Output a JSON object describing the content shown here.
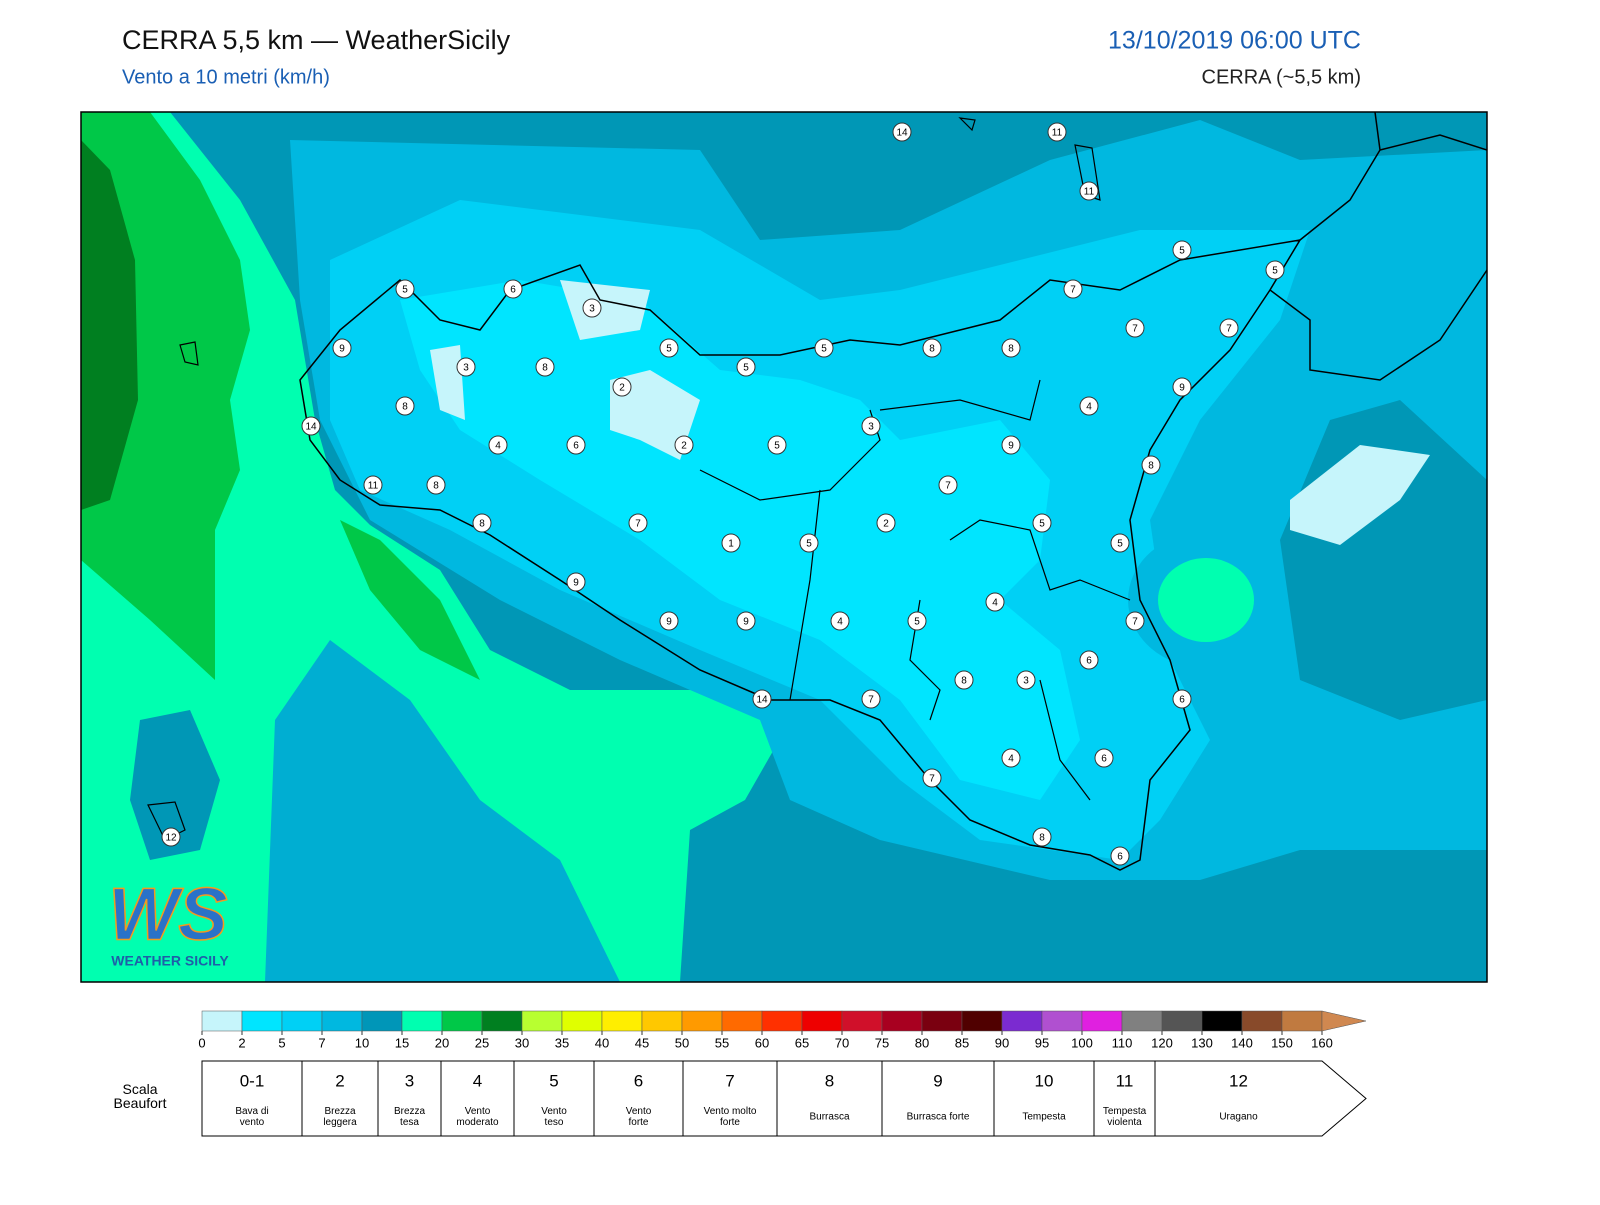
{
  "header": {
    "title": "CERRA 5,5 km — WeatherSicily",
    "subtitle": "Vento a 10 metri (km/h)",
    "date": "13/10/2019 06:00 UTC",
    "model": "CERRA (~5,5 km)"
  },
  "logo": {
    "mark": "WS",
    "name": "WEATHER SICILY"
  },
  "stations": [
    14,
    11,
    11,
    5,
    5,
    5,
    6,
    3,
    7,
    7,
    7,
    9,
    5,
    5,
    8,
    8,
    3,
    8,
    5,
    2,
    9,
    8,
    4,
    14,
    3,
    4,
    6,
    2,
    5,
    9,
    8,
    11,
    8,
    7,
    8,
    7,
    2,
    5,
    1,
    5,
    5,
    9,
    4,
    9,
    9,
    4,
    5,
    7,
    6,
    8,
    3,
    7,
    14,
    6,
    4,
    6,
    7,
    12,
    8,
    6
  ],
  "colorbar": {
    "ticks": [
      0,
      2,
      5,
      7,
      10,
      15,
      20,
      25,
      30,
      35,
      40,
      45,
      50,
      55,
      60,
      65,
      70,
      75,
      80,
      85,
      90,
      95,
      100,
      110,
      120,
      130,
      140,
      150,
      160
    ],
    "colors": [
      "#c6f5fb",
      "#00e5ff",
      "#00d0f5",
      "#00b8e0",
      "#0096b8",
      "#00ffb0",
      "#00c848",
      "#007f20",
      "#b8ff30",
      "#e0ff00",
      "#ffee00",
      "#ffc800",
      "#ff9a00",
      "#ff6a00",
      "#ff3000",
      "#ee0000",
      "#d0102a",
      "#a80020",
      "#7a0010",
      "#500000",
      "#7b2bd0",
      "#b050d0",
      "#e020e0",
      "#808080",
      "#555555",
      "#000000",
      "#884a2a",
      "#c07a40",
      "#d08850"
    ]
  },
  "beaufort": {
    "label": "Scala Beaufort",
    "levels": [
      {
        "force": "0-1",
        "name": "Bava di vento"
      },
      {
        "force": "2",
        "name": "Brezza leggera"
      },
      {
        "force": "3",
        "name": "Brezza tesa"
      },
      {
        "force": "4",
        "name": "Vento moderato"
      },
      {
        "force": "5",
        "name": "Vento teso"
      },
      {
        "force": "6",
        "name": "Vento forte"
      },
      {
        "force": "7",
        "name": "Vento molto forte"
      },
      {
        "force": "8",
        "name": "Burrasca"
      },
      {
        "force": "9",
        "name": "Burrasca forte"
      },
      {
        "force": "10",
        "name": "Tempesta"
      },
      {
        "force": "11",
        "name": "Tempesta violenta"
      },
      {
        "force": "12",
        "name": "Uragano"
      }
    ]
  }
}
